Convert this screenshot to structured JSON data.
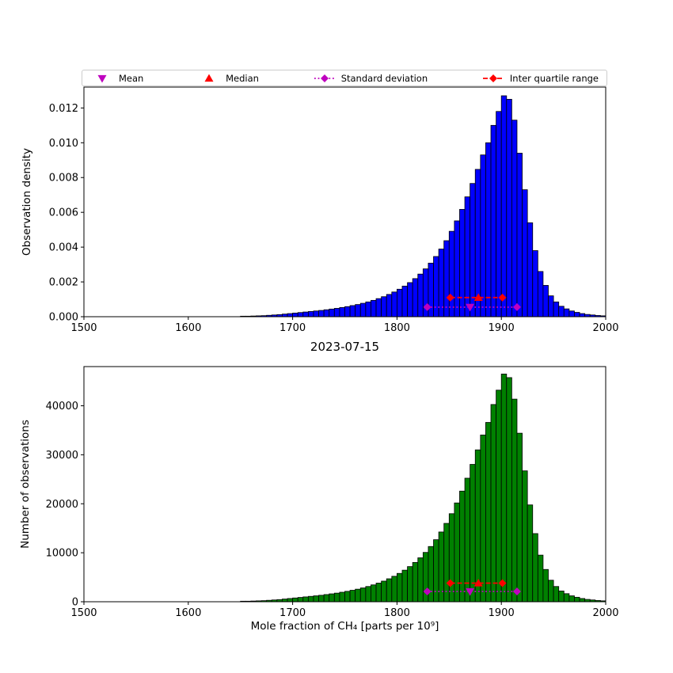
{
  "colors": {
    "magenta": "#bf00bf",
    "red": "#ff0000",
    "blue": "#0000ff",
    "green": "#008000",
    "bar_edge": "#000000",
    "background": "#ffffff"
  },
  "legend": {
    "items": [
      {
        "label": "Mean",
        "marker": "triangle-down",
        "color": "#bf00bf",
        "line": null
      },
      {
        "label": "Median",
        "marker": "triangle-up",
        "color": "#ff0000",
        "line": null
      },
      {
        "label": "Standard deviation",
        "marker": "diamond",
        "color": "#bf00bf",
        "line": "dotted"
      },
      {
        "label": "Inter quartile range",
        "marker": "diamond",
        "color": "#ff0000",
        "line": "dashed"
      }
    ]
  },
  "chart_data": [
    {
      "type": "bar",
      "id": "density-histogram",
      "title": "",
      "xlabel": "",
      "ylabel": "Observation density",
      "xlim": [
        1500,
        2000
      ],
      "ylim": [
        0,
        0.0132
      ],
      "bin_start": 1650,
      "bin_width": 5,
      "bar_color": "#0000ff",
      "xticks": [
        1500,
        1600,
        1700,
        1800,
        1900,
        2000
      ],
      "yticks": [
        0,
        0.002,
        0.004,
        0.006,
        0.008,
        0.01,
        0.012
      ],
      "ytick_labels": [
        "0.000",
        "0.002",
        "0.004",
        "0.006",
        "0.008",
        "0.010",
        "0.012"
      ],
      "values": [
        3e-05,
        3e-05,
        4e-05,
        5e-05,
        6e-05,
        8e-05,
        0.0001,
        0.00012,
        0.00015,
        0.00018,
        0.00021,
        0.00024,
        0.00027,
        0.0003,
        0.00033,
        0.00036,
        0.0004,
        0.00044,
        0.00048,
        0.00053,
        0.00058,
        0.00064,
        0.0007,
        0.00077,
        0.00085,
        0.00094,
        0.00104,
        0.00115,
        0.00128,
        0.00142,
        0.00158,
        0.00176,
        0.00196,
        0.00219,
        0.00245,
        0.00275,
        0.00308,
        0.00346,
        0.00389,
        0.00437,
        0.00491,
        0.00551,
        0.00617,
        0.00689,
        0.00766,
        0.00847,
        0.0093,
        0.01,
        0.011,
        0.0118,
        0.0127,
        0.0125,
        0.0113,
        0.0094,
        0.0073,
        0.0054,
        0.0038,
        0.0026,
        0.0018,
        0.0012,
        0.00085,
        0.0006,
        0.00045,
        0.00033,
        0.00025,
        0.00018,
        0.00013,
        0.0001,
        7e-05,
        5e-05
      ],
      "stats": {
        "mean": 1870,
        "median": 1878,
        "std_range": [
          1829,
          1915
        ],
        "iqr_range": [
          1851,
          1901
        ],
        "std_y": 0.00055,
        "iqr_y": 0.0011
      }
    },
    {
      "type": "bar",
      "id": "counts-histogram",
      "title": "2023-07-15",
      "xlabel": "Mole fraction of CH₄ [parts per 10⁹]",
      "ylabel": "Number of observations",
      "xlim": [
        1500,
        2000
      ],
      "ylim": [
        0,
        48000
      ],
      "bin_start": 1650,
      "bin_width": 5,
      "bar_color": "#008000",
      "xticks": [
        1500,
        1600,
        1700,
        1800,
        1900,
        2000
      ],
      "yticks": [
        0,
        10000,
        20000,
        30000,
        40000
      ],
      "ytick_labels": [
        "0",
        "10000",
        "20000",
        "30000",
        "40000"
      ],
      "values": [
        110,
        110,
        146,
        183,
        220,
        293,
        366,
        439,
        549,
        659,
        769,
        878,
        988,
        1098,
        1208,
        1318,
        1464,
        1610,
        1757,
        1940,
        2123,
        2342,
        2562,
        2818,
        3111,
        3440,
        3806,
        4209,
        4685,
        5197,
        5783,
        6442,
        7174,
        8015,
        8967,
        10065,
        11273,
        12664,
        14237,
        15994,
        17971,
        20167,
        22582,
        25217,
        28036,
        31000,
        34038,
        36600,
        40260,
        43188,
        46482,
        45750,
        41358,
        34404,
        26718,
        19764,
        13908,
        9516,
        6588,
        4392,
        3111,
        2196,
        1647,
        1208,
        915,
        659,
        476,
        366,
        256,
        183
      ],
      "stats": {
        "mean": 1870,
        "median": 1878,
        "std_range": [
          1829,
          1915
        ],
        "iqr_range": [
          1851,
          1901
        ],
        "std_y": 2100,
        "iqr_y": 3800
      }
    }
  ]
}
